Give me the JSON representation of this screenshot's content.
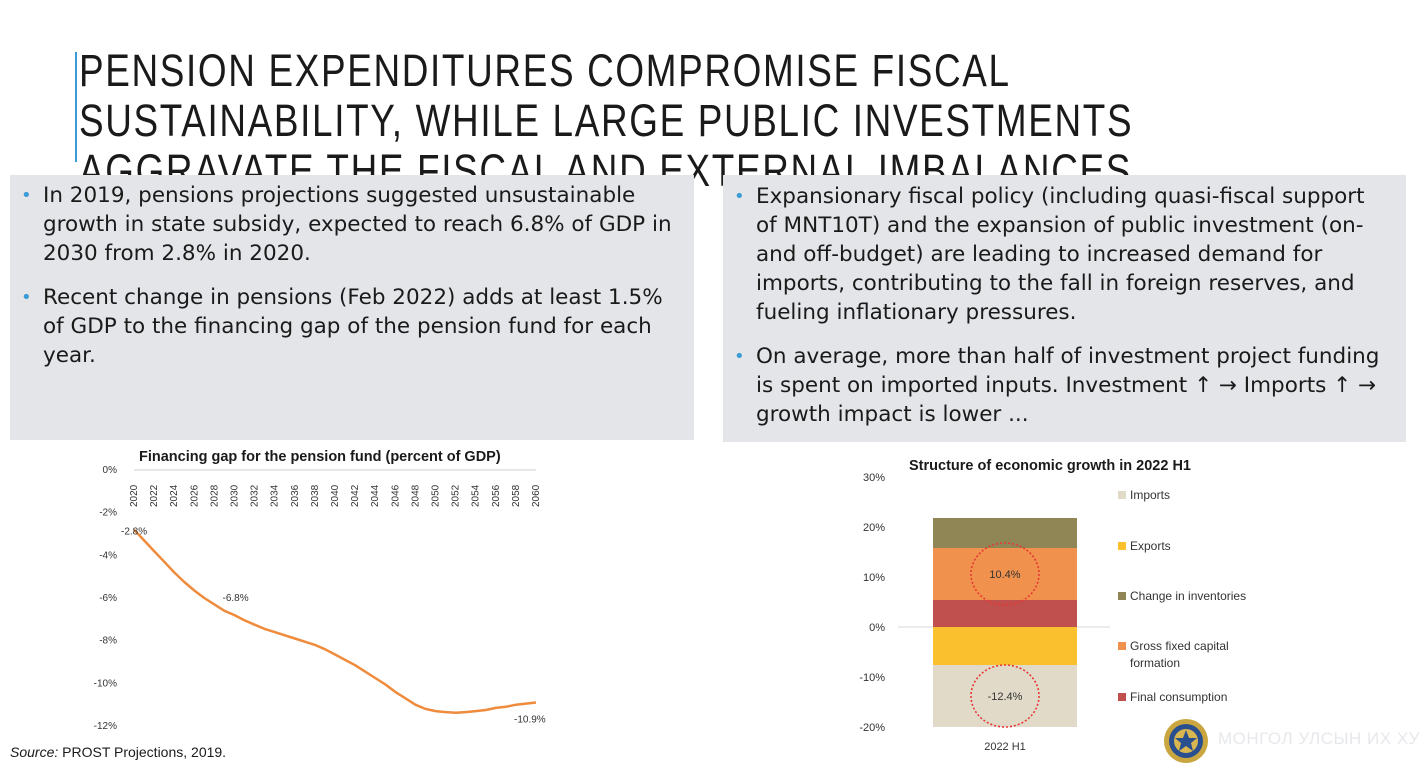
{
  "title": "PENSION EXPENDITURES COMPROMISE FISCAL SUSTAINABILITY, WHILE LARGE PUBLIC INVESTMENTS AGGRAVATE THE FISCAL AND EXTERNAL IMBALANCES",
  "bullet_symbol": "•",
  "left_panel": {
    "bullets": [
      "In 2019, pensions projections suggested unsustainable growth in state subsidy, expected to reach 6.8% of GDP in 2030 from 2.8% in 2020.",
      "Recent change in pensions (Feb 2022) adds at least 1.5% of GDP to the financing gap of the pension fund for each year."
    ]
  },
  "right_panel": {
    "bullets": [
      "Expansionary fiscal policy (including quasi-fiscal support of MNT10T) and the expansion of public investment (on- and off-budget) are leading to increased demand for imports, contributing to the fall in foreign reserves, and fueling inflationary pressures.",
      "On average, more than half of investment project funding is spent on imported inputs. Investment ↑ → Imports ↑ → growth impact is lower ..."
    ]
  },
  "source": {
    "label": "Source:",
    "text": " PROST Projections, 2019."
  },
  "watermark": "МОНГОЛ УЛСЫН ИХ ХУРАЛ",
  "colors": {
    "accent": "#3a9bd5",
    "panel_bg": "#e3e5e8",
    "line": "#ef8b3c"
  },
  "chart_data": [
    {
      "type": "line",
      "title": "Financing gap for the pension fund (percent of GDP)",
      "x": [
        2020,
        2021,
        2022,
        2023,
        2024,
        2025,
        2026,
        2027,
        2028,
        2029,
        2030,
        2031,
        2032,
        2033,
        2034,
        2035,
        2036,
        2037,
        2038,
        2039,
        2040,
        2041,
        2042,
        2043,
        2044,
        2045,
        2046,
        2047,
        2048,
        2049,
        2050,
        2051,
        2052,
        2053,
        2054,
        2055,
        2056,
        2057,
        2058,
        2059,
        2060
      ],
      "x_tick_labels": [
        "2020",
        "2022",
        "2024",
        "2026",
        "2028",
        "2030",
        "2032",
        "2034",
        "2036",
        "2038",
        "2040",
        "2042",
        "2044",
        "2046",
        "2048",
        "2050",
        "2052",
        "2054",
        "2056",
        "2058",
        "2060"
      ],
      "series": [
        {
          "values": [
            -2.8,
            -3.3,
            -3.8,
            -4.3,
            -4.8,
            -5.25,
            -5.65,
            -6.0,
            -6.3,
            -6.6,
            -6.8,
            -7.05,
            -7.25,
            -7.45,
            -7.6,
            -7.75,
            -7.9,
            -8.05,
            -8.2,
            -8.4,
            -8.65,
            -8.9,
            -9.15,
            -9.45,
            -9.75,
            -10.05,
            -10.4,
            -10.7,
            -11.0,
            -11.2,
            -11.3,
            -11.35,
            -11.38,
            -11.35,
            -11.3,
            -11.25,
            -11.15,
            -11.1,
            -11.0,
            -10.95,
            -10.9
          ]
        }
      ],
      "y_tick_labels": [
        "0%",
        "-2%",
        "-4%",
        "-6%",
        "-8%",
        "-10%",
        "-12%"
      ],
      "ylim": [
        -12,
        0
      ],
      "annotations": [
        {
          "x": 2020,
          "label": "-2.8%"
        },
        {
          "x": 2030,
          "label": "-6.8%"
        },
        {
          "x": 2060,
          "label": "-10.9%"
        }
      ]
    },
    {
      "type": "bar",
      "stacked": true,
      "title": "Structure of economic growth in 2022 H1",
      "categories": [
        "2022 H1"
      ],
      "series": [
        {
          "name": "Imports",
          "values": [
            -12.4
          ],
          "color": "#e1dac9"
        },
        {
          "name": "Exports",
          "values": [
            -7.6
          ],
          "color": "#fbc02d"
        },
        {
          "name": "Change in inventories",
          "values": [
            6.0
          ],
          "color": "#908655"
        },
        {
          "name": "Gross fixed capital formation",
          "values": [
            10.4
          ],
          "color": "#f0914d"
        },
        {
          "name": "Final consumption",
          "values": [
            5.4
          ],
          "color": "#c0504d"
        }
      ],
      "y_tick_labels": [
        "30%",
        "20%",
        "10%",
        "0%",
        "-10%",
        "-20%"
      ],
      "ylim": [
        -20,
        30
      ],
      "annotations": [
        {
          "label": "10.4%",
          "series": "Gross fixed capital formation"
        },
        {
          "label": "-12.4%",
          "series": "Imports"
        }
      ],
      "legend_position": "right"
    }
  ]
}
